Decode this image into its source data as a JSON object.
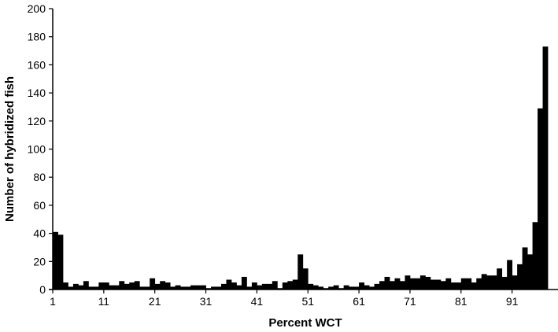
{
  "chart_data": {
    "type": "bar",
    "title": "",
    "xlabel": "Percent WCT",
    "ylabel": "Number of hybridized fish",
    "xlim": [
      1,
      100
    ],
    "ylim": [
      0,
      200
    ],
    "y_ticks": [
      0,
      20,
      40,
      60,
      80,
      100,
      120,
      140,
      160,
      180,
      200
    ],
    "x_ticks": [
      1,
      11,
      21,
      31,
      41,
      51,
      61,
      71,
      81,
      91
    ],
    "grid": false,
    "legend": "none",
    "bar_color": "#000000",
    "x": [
      1,
      2,
      3,
      4,
      5,
      6,
      7,
      8,
      9,
      10,
      11,
      12,
      13,
      14,
      15,
      16,
      17,
      18,
      19,
      20,
      21,
      22,
      23,
      24,
      25,
      26,
      27,
      28,
      29,
      30,
      31,
      32,
      33,
      34,
      35,
      36,
      37,
      38,
      39,
      40,
      41,
      42,
      43,
      44,
      45,
      46,
      47,
      48,
      49,
      50,
      51,
      52,
      53,
      54,
      55,
      56,
      57,
      58,
      59,
      60,
      61,
      62,
      63,
      64,
      65,
      66,
      67,
      68,
      69,
      70,
      71,
      72,
      73,
      74,
      75,
      76,
      77,
      78,
      79,
      80,
      81,
      82,
      83,
      84,
      85,
      86,
      87,
      88,
      89,
      90,
      91,
      92,
      93,
      94,
      95,
      96,
      97,
      98,
      99
    ],
    "values": [
      41,
      39,
      5,
      2,
      4,
      3,
      6,
      2,
      2,
      5,
      5,
      3,
      3,
      6,
      4,
      5,
      6,
      2,
      2,
      8,
      4,
      6,
      5,
      2,
      3,
      2,
      2,
      3,
      3,
      3,
      1,
      2,
      2,
      4,
      7,
      5,
      3,
      9,
      2,
      5,
      3,
      4,
      4,
      6,
      1,
      5,
      6,
      7,
      25,
      15,
      4,
      3,
      2,
      1,
      2,
      3,
      1,
      3,
      2,
      2,
      5,
      3,
      2,
      4,
      6,
      9,
      6,
      8,
      6,
      10,
      8,
      8,
      10,
      9,
      7,
      7,
      6,
      8,
      5,
      5,
      8,
      8,
      5,
      8,
      11,
      10,
      10,
      15,
      9,
      21,
      10,
      18,
      30,
      25,
      48,
      129,
      173,
      0,
      0
    ]
  }
}
